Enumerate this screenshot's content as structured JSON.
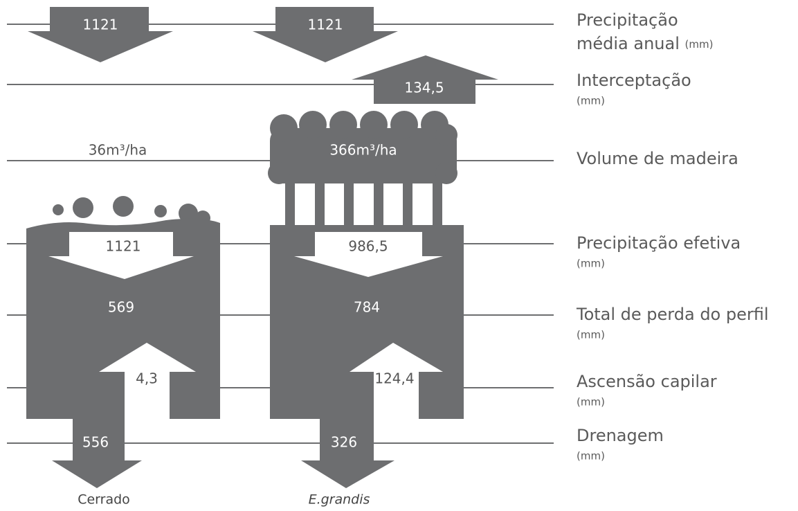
{
  "rows": [
    {
      "label": "Precipitação",
      "label_line2": "média anual",
      "unit": "(mm)",
      "cerrado": "1121",
      "egrandis": "1121"
    },
    {
      "label": "Interceptação",
      "unit": "(mm)",
      "egrandis": "134,5"
    },
    {
      "label": "Volume de madeira",
      "cerrado": "36m³/ha",
      "egrandis": "366m³/ha"
    },
    {
      "label": "Precipitação efetiva",
      "unit": "(mm)",
      "cerrado": "1121",
      "egrandis": "986,5"
    },
    {
      "label": "Total de perda do perfil",
      "unit": "(mm)",
      "cerrado": "569",
      "egrandis": "784"
    },
    {
      "label": "Ascensão capilar",
      "unit": "(mm)",
      "cerrado": "4,3",
      "egrandis": "124,4"
    },
    {
      "label": "Drenagem",
      "unit": "(mm)",
      "cerrado": "556",
      "egrandis": "326"
    }
  ],
  "columns": [
    "Cerrado",
    "E.grandis"
  ]
}
